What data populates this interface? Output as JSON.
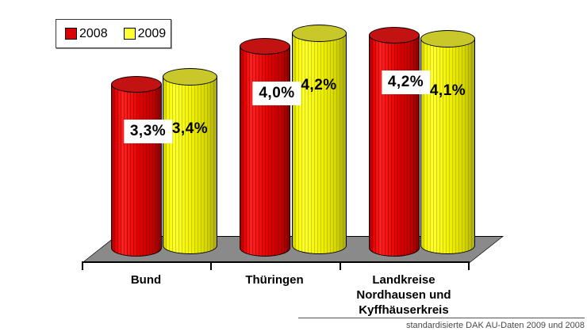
{
  "legend": {
    "items": [
      {
        "label": "2008",
        "color": "#dd0000"
      },
      {
        "label": "2009",
        "color": "#ffff33"
      }
    ]
  },
  "chart_data": {
    "type": "bar",
    "subtype": "3d-cylinder",
    "title": "",
    "xlabel": "",
    "ylabel": "",
    "unit": "%",
    "grid": false,
    "legend_position": "top-left",
    "floor_color": "#8a8a8a",
    "categories": [
      "Bund",
      "Thüringen",
      "Landkreise Nordhausen und Kyffhäuserkreis"
    ],
    "category_display_lines": [
      [
        "Bund"
      ],
      [
        "Thüringen"
      ],
      [
        "Landkreise",
        "Nordhausen und",
        "Kyffhäuserkreis"
      ]
    ],
    "series": [
      {
        "name": "2008",
        "color": "#dd0000",
        "values": [
          3.3,
          4.0,
          4.2
        ],
        "labels": [
          "3,3%",
          "4,0%",
          "4,2%"
        ]
      },
      {
        "name": "2009",
        "color": "#f0f000",
        "values": [
          3.4,
          4.2,
          4.1
        ],
        "labels": [
          "3,4%",
          "4,2%",
          "4,1%"
        ]
      }
    ]
  },
  "footer": {
    "source_note": "standardisierte DAK AU-Daten 2009 und 2008"
  }
}
